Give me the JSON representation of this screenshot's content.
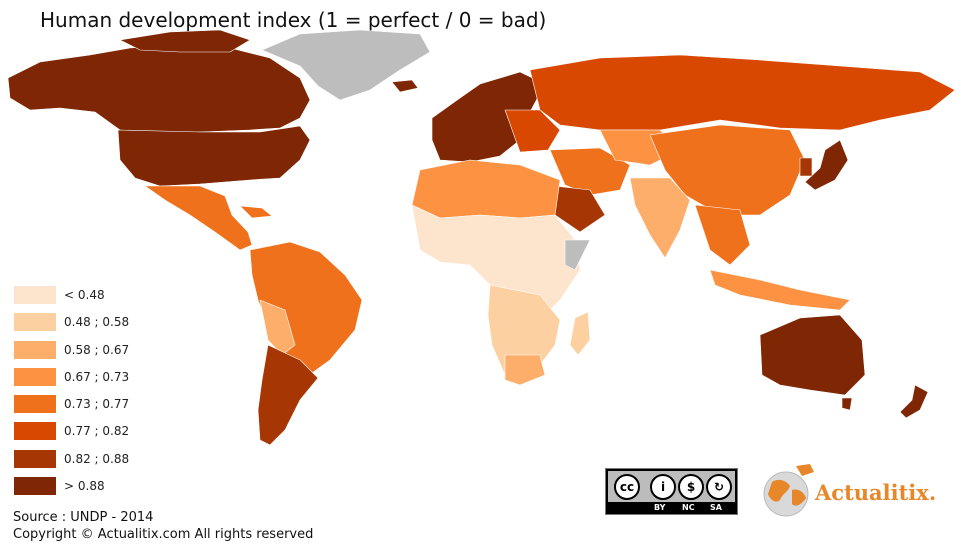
{
  "title": "Human development index (1 = perfect / 0 = bad)",
  "legend": {
    "items": [
      {
        "label": "< 0.48",
        "color": "#fde4cc"
      },
      {
        "label": "0.48 ; 0.58",
        "color": "#fdd0a2"
      },
      {
        "label": "0.58 ; 0.67",
        "color": "#fdae6b"
      },
      {
        "label": "0.67 ; 0.73",
        "color": "#fd9242"
      },
      {
        "label": "0.73 ; 0.77",
        "color": "#f0711c"
      },
      {
        "label": "0.77 ; 0.82",
        "color": "#d94801"
      },
      {
        "label": "0.82 ; 0.88",
        "color": "#a63603"
      },
      {
        "label": "> 0.88",
        "color": "#7f2704"
      }
    ]
  },
  "no_data_color": "#bdbdbd",
  "source": "Source : UNDP - 2014",
  "copyright": "Copyright © Actualitix.com All rights reserved",
  "license": {
    "symbol": "cc",
    "labels": [
      "BY",
      "NC",
      "SA"
    ]
  },
  "brand": {
    "name": "Actualitix",
    "dot": ".",
    "color": "#e8862a",
    "icon": "globe-icon"
  },
  "regions": [
    {
      "name": "Canada",
      "class": "> 0.88"
    },
    {
      "name": "United States",
      "class": "> 0.88"
    },
    {
      "name": "Greenland",
      "class": "no-data"
    },
    {
      "name": "Mexico",
      "class": "0.73 ; 0.77"
    },
    {
      "name": "Brazil",
      "class": "0.73 ; 0.77"
    },
    {
      "name": "Argentina",
      "class": "0.82 ; 0.88"
    },
    {
      "name": "Chile",
      "class": "0.82 ; 0.88"
    },
    {
      "name": "Western Europe",
      "class": "> 0.88"
    },
    {
      "name": "Russia",
      "class": "0.77 ; 0.82"
    },
    {
      "name": "China",
      "class": "0.73 ; 0.77"
    },
    {
      "name": "India",
      "class": "0.58 ; 0.67"
    },
    {
      "name": "Saudi Arabia",
      "class": "0.82 ; 0.88"
    },
    {
      "name": "Sub-Saharan Africa",
      "class": "< 0.48"
    },
    {
      "name": "South Africa",
      "class": "0.58 ; 0.67"
    },
    {
      "name": "Australia",
      "class": "> 0.88"
    },
    {
      "name": "New Zealand",
      "class": "> 0.88"
    },
    {
      "name": "Japan",
      "class": "> 0.88"
    }
  ]
}
